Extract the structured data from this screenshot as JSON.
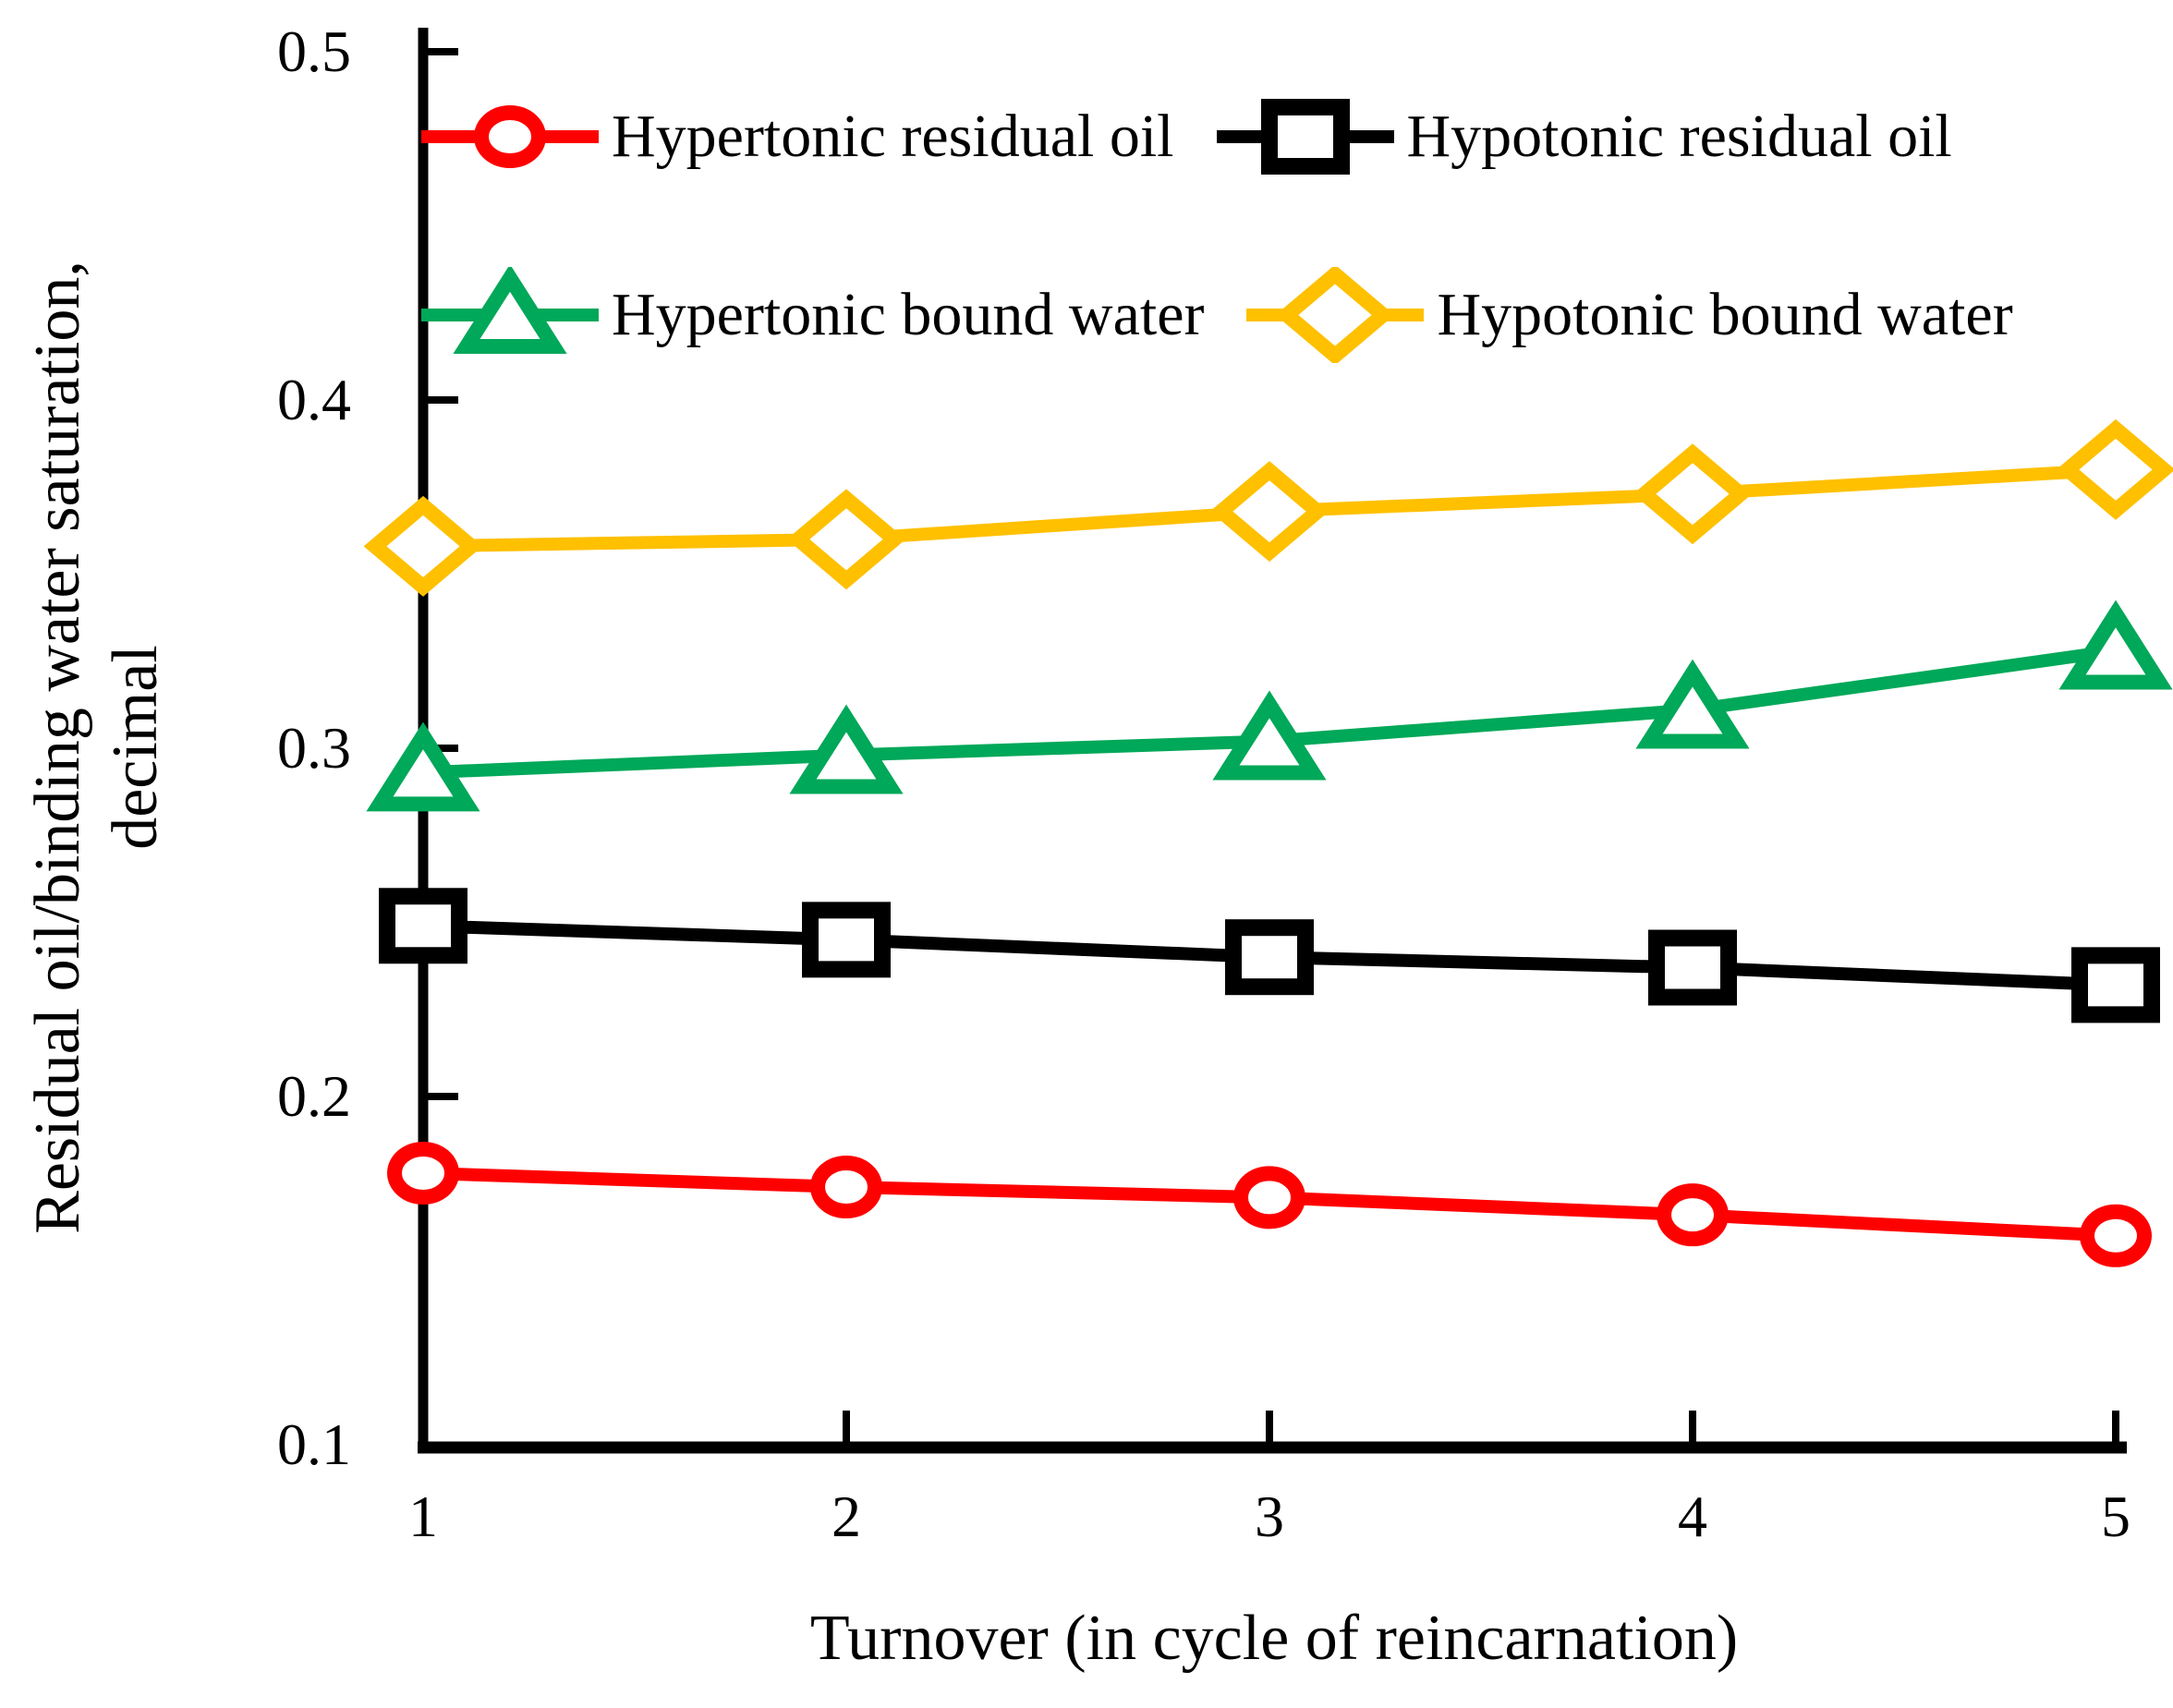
{
  "figure": {
    "background": "#ffffff",
    "axis_color": "#000000"
  },
  "chart_data": {
    "type": "line",
    "title": "",
    "xlabel": "Turnover (in cycle of reincarnation)",
    "ylabel": "Residual oil/binding water saturation, decimal",
    "ylabel_line1": "Residual oil/binding water saturation,",
    "ylabel_line2": "decimal",
    "x": [
      1,
      2,
      3,
      4,
      5
    ],
    "xticks": [
      "1",
      "2",
      "3",
      "4",
      "5"
    ],
    "yticks": [
      "0.1",
      "0.2",
      "0.3",
      "0.4",
      "0.5"
    ],
    "xlim": [
      1,
      5
    ],
    "ylim": [
      0.1,
      0.5
    ],
    "grid": false,
    "legend_position": "inside-top, two rows",
    "series": [
      {
        "name": "Hypertonic residual oil",
        "marker": "circle",
        "color": "#FF0000",
        "values": [
          0.178,
          0.174,
          0.171,
          0.166,
          0.16
        ]
      },
      {
        "name": "Hypotonic residual oil",
        "marker": "square",
        "color": "#000000",
        "values": [
          0.249,
          0.245,
          0.24,
          0.237,
          0.232
        ]
      },
      {
        "name": "Hypertonic bound water",
        "marker": "triangle",
        "color": "#00A859",
        "values": [
          0.293,
          0.298,
          0.302,
          0.311,
          0.328
        ]
      },
      {
        "name": "Hypotonic bound water",
        "marker": "diamond",
        "color": "#FFC000",
        "values": [
          0.358,
          0.36,
          0.368,
          0.373,
          0.38
        ]
      }
    ],
    "legend_rows": [
      [
        0,
        1
      ],
      [
        2,
        3
      ]
    ]
  }
}
